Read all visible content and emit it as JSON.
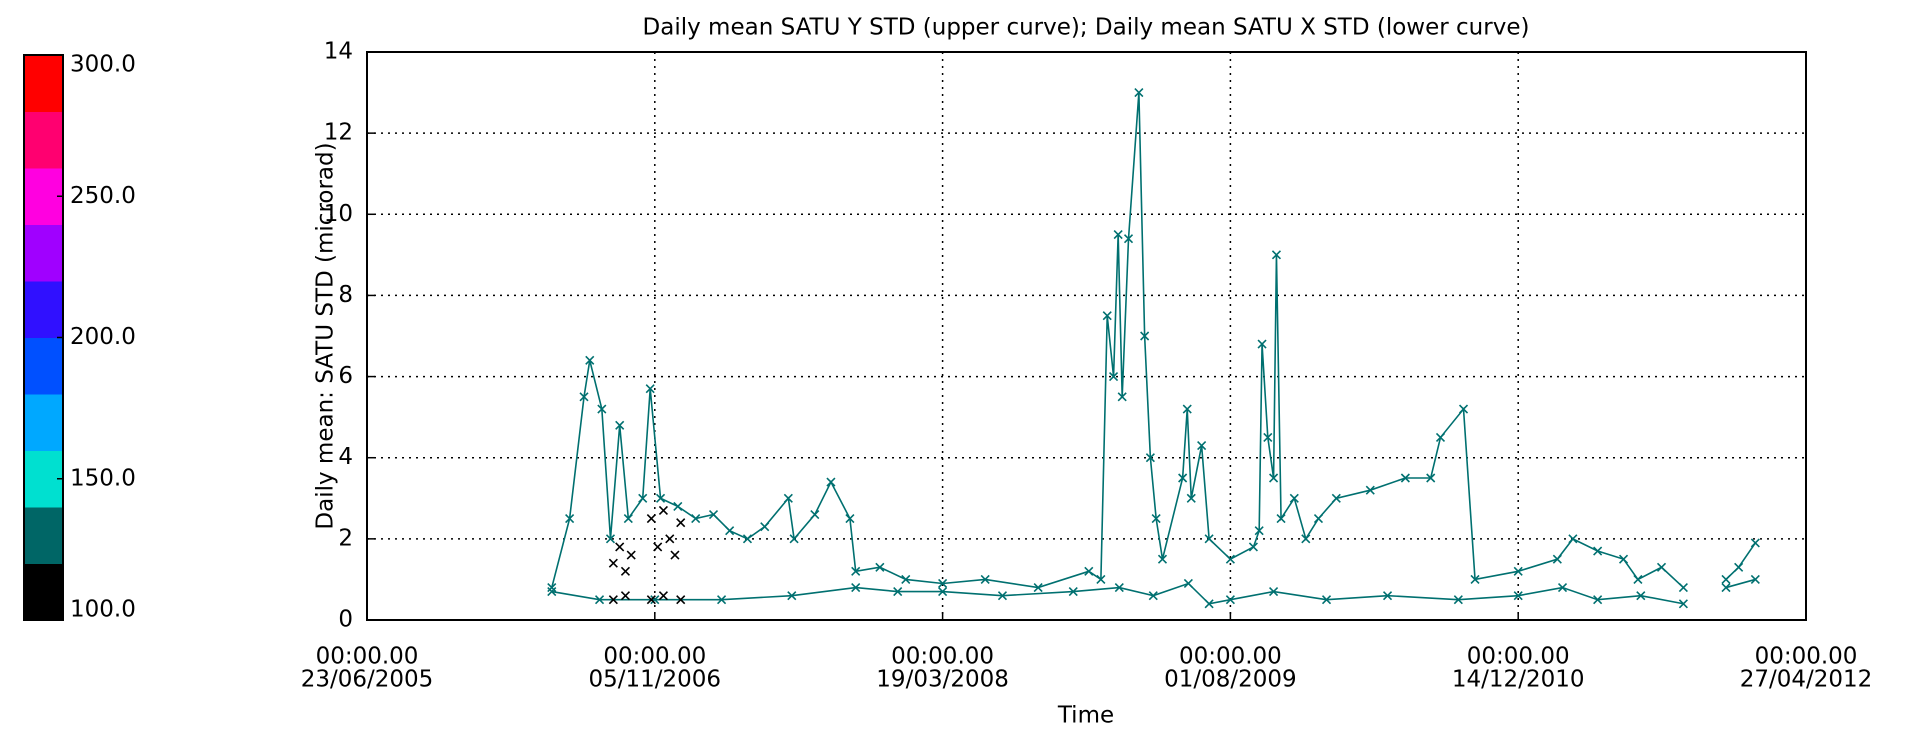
{
  "chart_data": {
    "type": "line",
    "title": "Daily mean SATU Y STD (upper curve); Daily mean SATU X STD (lower curve)",
    "xlabel": "Time",
    "ylabel": "Daily mean: SATU STD (microrad)",
    "xlim": [
      "2005-06-23",
      "2012-04-27"
    ],
    "xticks": [
      {
        "value": "2005-06-23",
        "label": [
          "00:00.00",
          "23/06/2005"
        ]
      },
      {
        "value": "2006-11-05",
        "label": [
          "00:00.00",
          "05/11/2006"
        ]
      },
      {
        "value": "2008-03-19",
        "label": [
          "00:00.00",
          "19/03/2008"
        ]
      },
      {
        "value": "2009-08-01",
        "label": [
          "00:00.00",
          "01/08/2009"
        ]
      },
      {
        "value": "2010-12-14",
        "label": [
          "00:00.00",
          "14/12/2010"
        ]
      },
      {
        "value": "2012-04-27",
        "label": [
          "00:00.00",
          "27/04/2012"
        ]
      }
    ],
    "ylim": [
      0,
      14
    ],
    "yticks": [
      0,
      2,
      4,
      6,
      8,
      10,
      12,
      14
    ],
    "grid": true,
    "marker": "x",
    "series": [
      {
        "color": "#007070",
        "mode": "lines+markers",
        "x": [
          "2006-05-10",
          "2006-06-10",
          "2006-07-05",
          "2006-07-15",
          "2006-08-05",
          "2006-08-20",
          "2006-09-05",
          "2006-09-20",
          "2006-10-15",
          "2006-10-28",
          "2006-11-15",
          "2006-12-15",
          "2007-01-15",
          "2007-02-15",
          "2007-03-15",
          "2007-04-15",
          "2007-05-15",
          "2007-06-25",
          "2007-07-05",
          "2007-08-10",
          "2007-09-07",
          "2007-10-10",
          "2007-10-20",
          "2007-12-01",
          "2008-01-15",
          "2008-03-19",
          "2008-06-01",
          "2008-09-01",
          "2008-11-28",
          "2008-12-19",
          "2008-12-30",
          "2009-01-10",
          "2009-01-18",
          "2009-01-25",
          "2009-02-05",
          "2009-02-23",
          "2009-03-05",
          "2009-03-15",
          "2009-03-25",
          "2009-04-05",
          "2009-05-10",
          "2009-05-18",
          "2009-05-25",
          "2009-06-12",
          "2009-06-25",
          "2009-08-01",
          "2009-09-10",
          "2009-09-20",
          "2009-09-25",
          "2009-10-05",
          "2009-10-15",
          "2009-10-20",
          "2009-10-28",
          "2009-11-20",
          "2009-12-10",
          "2010-01-01",
          "2010-02-01",
          "2010-04-01",
          "2010-06-01",
          "2010-07-15",
          "2010-08-01",
          "2010-09-10",
          "2010-09-30",
          "2010-12-14",
          "2011-02-20",
          "2011-03-19",
          "2011-05-01",
          "2011-06-15",
          "2011-07-10",
          "2011-08-20",
          "2011-09-27",
          "2011-11-01",
          "2011-12-10",
          "2012-01-01",
          "2012-01-30"
        ],
        "values": [
          0.8,
          2.5,
          5.5,
          6.4,
          5.2,
          2.0,
          4.8,
          2.5,
          3.0,
          5.7,
          3.0,
          2.8,
          2.5,
          2.6,
          2.2,
          2.0,
          2.3,
          3.0,
          2.0,
          2.6,
          3.4,
          2.5,
          1.2,
          1.3,
          1.0,
          0.9,
          1.0,
          0.8,
          1.2,
          1.0,
          7.5,
          6.0,
          9.5,
          5.5,
          9.4,
          13.0,
          7.0,
          4.0,
          2.5,
          1.5,
          3.5,
          5.2,
          3.0,
          4.3,
          2.0,
          1.5,
          1.8,
          2.2,
          6.8,
          4.5,
          3.5,
          9.0,
          2.5,
          3.0,
          2.0,
          2.5,
          3.0,
          3.2,
          3.5,
          3.5,
          4.5,
          5.2,
          1.0,
          1.2,
          1.5,
          2.0,
          1.7,
          1.5,
          1.0,
          1.3,
          0.8,
          null,
          1.0,
          1.3,
          1.9
        ]
      },
      {
        "color": "#007070",
        "mode": "lines+markers",
        "x": [
          "2006-05-10",
          "2006-08-01",
          "2006-11-05",
          "2007-03-01",
          "2007-07-01",
          "2007-10-20",
          "2008-01-01",
          "2008-03-19",
          "2008-07-01",
          "2008-11-01",
          "2009-01-20",
          "2009-03-20",
          "2009-05-20",
          "2009-06-25",
          "2009-08-01",
          "2009-10-15",
          "2010-01-15",
          "2010-05-01",
          "2010-09-01",
          "2010-12-14",
          "2011-03-01",
          "2011-05-01",
          "2011-07-15",
          "2011-09-27",
          "2011-11-01",
          "2011-12-10",
          "2012-01-30"
        ],
        "values": [
          0.7,
          0.5,
          0.5,
          0.5,
          0.6,
          0.8,
          0.7,
          0.7,
          0.6,
          0.7,
          0.8,
          0.6,
          0.9,
          0.4,
          0.5,
          0.7,
          0.5,
          0.6,
          0.5,
          0.6,
          0.8,
          0.5,
          0.6,
          0.4,
          null,
          0.8,
          1.0
        ]
      },
      {
        "color": "#000000",
        "mode": "markers",
        "x": [
          "2006-08-25",
          "2006-09-05",
          "2006-09-15",
          "2006-09-25",
          "2006-10-30",
          "2006-11-10",
          "2006-11-20",
          "2006-12-01",
          "2006-12-10",
          "2006-12-20",
          "2006-08-25",
          "2006-09-15",
          "2006-10-30",
          "2006-11-20",
          "2006-12-20"
        ],
        "values": [
          1.4,
          1.8,
          1.2,
          1.6,
          2.5,
          1.8,
          2.7,
          2.0,
          1.6,
          2.4,
          0.5,
          0.6,
          0.5,
          0.6,
          0.5
        ]
      }
    ],
    "colorbar": {
      "range": [
        100,
        300
      ],
      "colors": [
        "#000000",
        "#006666",
        "#00e0d0",
        "#00a8ff",
        "#0050ff",
        "#3010ff",
        "#a000ff",
        "#ff00e0",
        "#ff0070",
        "#ff0000"
      ],
      "ticks": [
        {
          "value": 100,
          "label": "100.0"
        },
        {
          "value": 150,
          "label": "150.0"
        },
        {
          "value": 200,
          "label": "200.0"
        },
        {
          "value": 250,
          "label": "250.0"
        },
        {
          "value": 300,
          "label": "300.0"
        }
      ]
    }
  }
}
